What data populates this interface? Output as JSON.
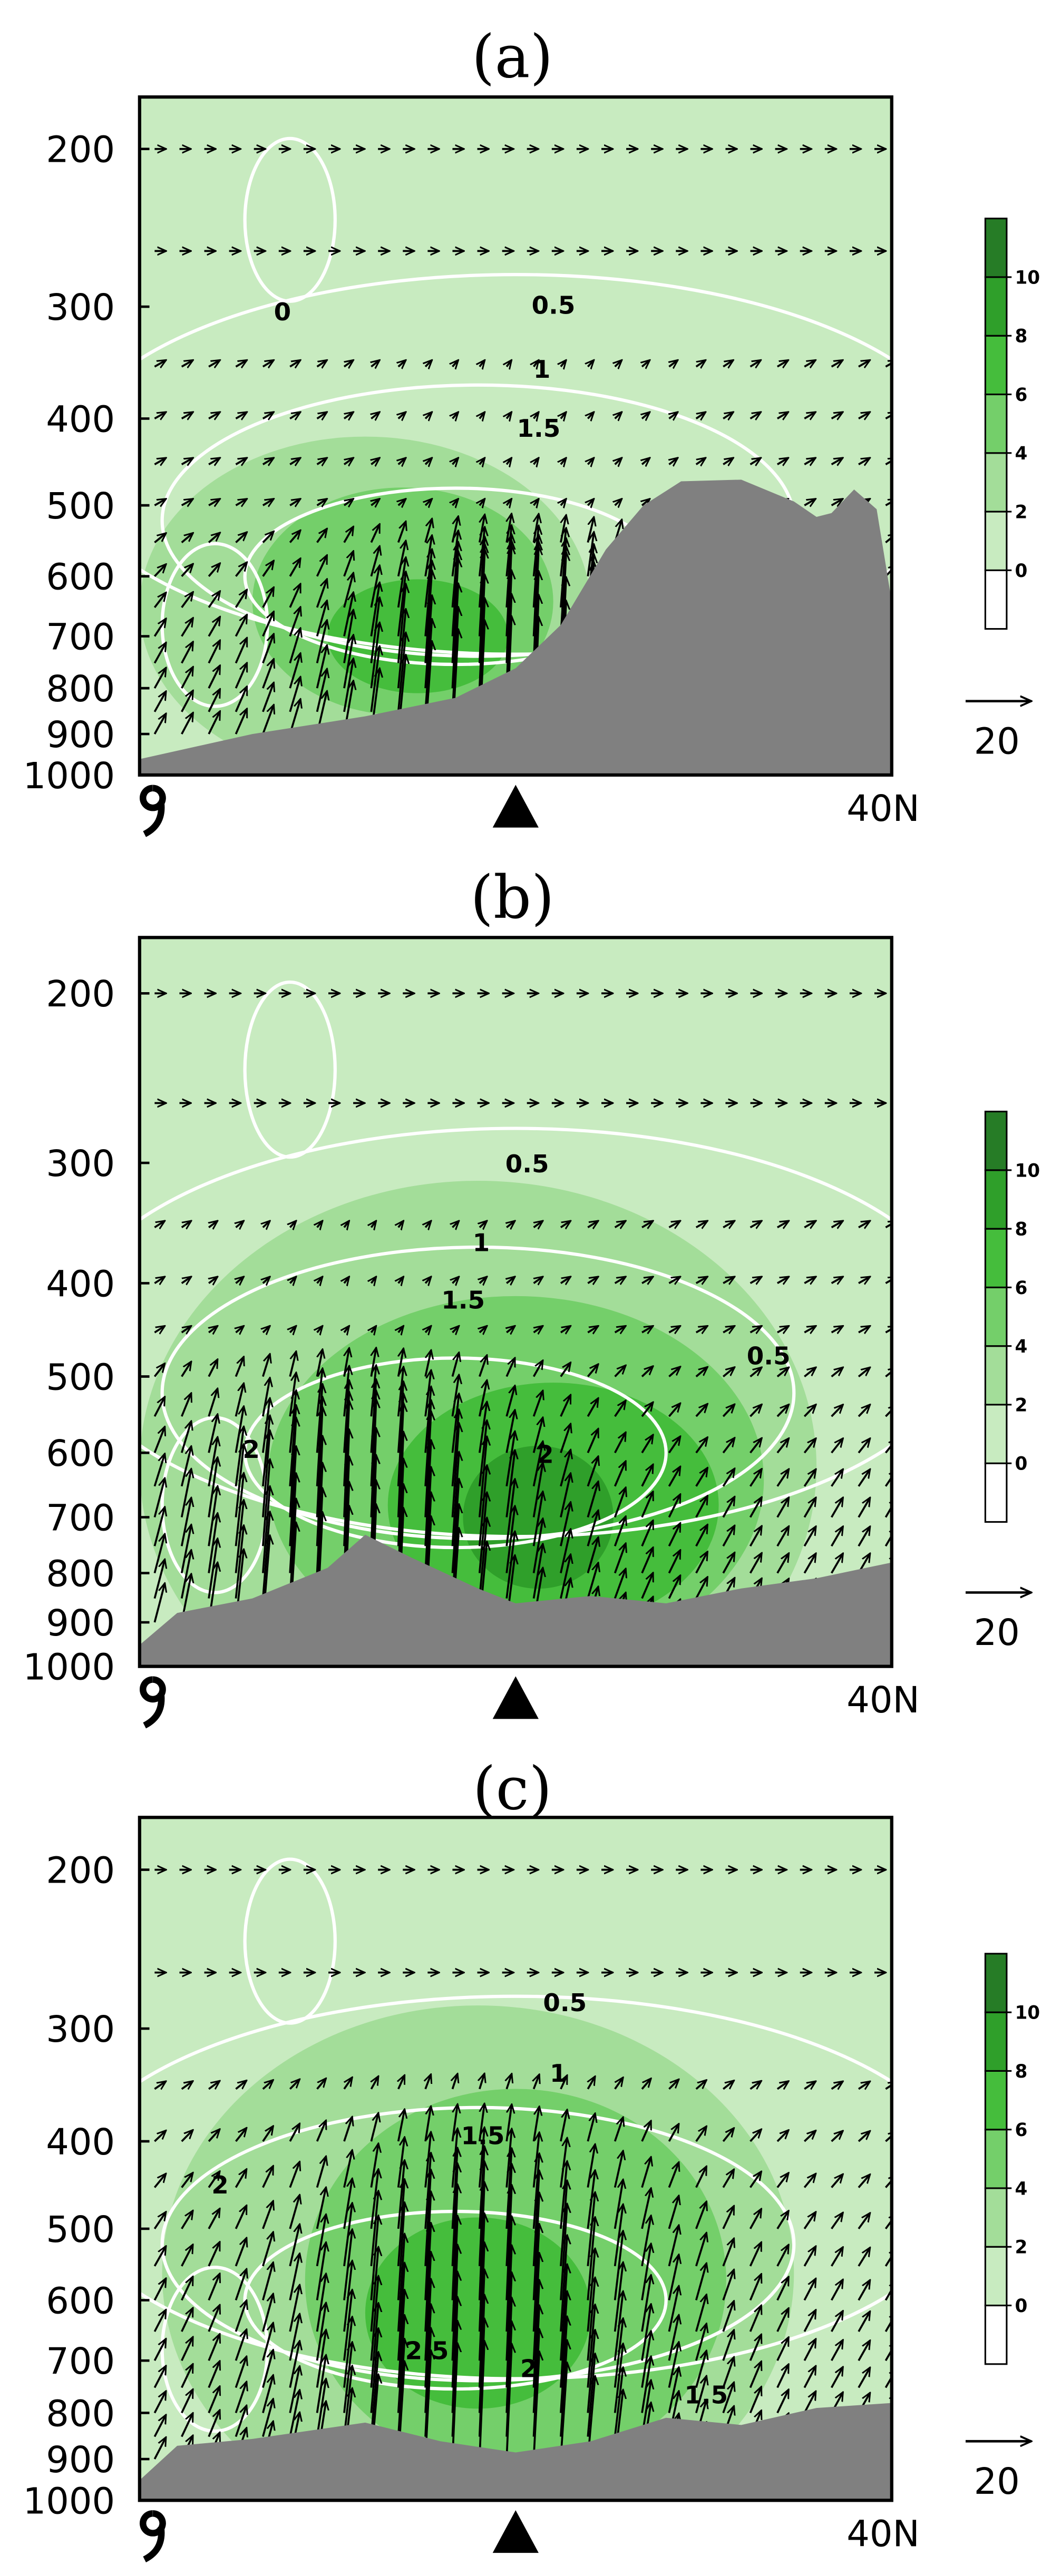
{
  "chart_data": [
    {
      "type": "contour",
      "title": "(a)",
      "ylim": [
        1000,
        175
      ],
      "log_y": true,
      "yticks": [
        200,
        300,
        400,
        500,
        600,
        700,
        800,
        900,
        1000
      ],
      "x_label": "40N",
      "contour_labels": [
        0,
        0.5,
        1,
        1.5
      ],
      "colorbar": {
        "ticks": [
          0,
          2,
          4,
          6,
          8,
          10
        ],
        "colors": [
          "#ffffff",
          "#c8ebc0",
          "#a3dd99",
          "#74cf6a",
          "#45bd3c",
          "#2f9f2a",
          "#267c26"
        ]
      },
      "vector_reference": 20
    },
    {
      "type": "contour",
      "title": "(b)",
      "ylim": [
        1000,
        175
      ],
      "log_y": true,
      "yticks": [
        200,
        300,
        400,
        500,
        600,
        700,
        800,
        900,
        1000
      ],
      "x_label": "40N",
      "contour_labels": [
        0.5,
        1,
        1.5,
        0.5,
        2,
        2
      ],
      "colorbar": {
        "ticks": [
          0,
          2,
          4,
          6,
          8,
          10
        ],
        "colors": [
          "#ffffff",
          "#c8ebc0",
          "#a3dd99",
          "#74cf6a",
          "#45bd3c",
          "#2f9f2a",
          "#267c26"
        ]
      },
      "vector_reference": 20
    },
    {
      "type": "contour",
      "title": "(c)",
      "ylim": [
        1000,
        175
      ],
      "log_y": true,
      "yticks": [
        200,
        300,
        400,
        500,
        600,
        700,
        800,
        900,
        1000
      ],
      "x_label": "40N",
      "contour_labels": [
        0.5,
        1,
        1.5,
        2,
        2.5,
        2,
        1.5
      ],
      "colorbar": {
        "ticks": [
          0,
          2,
          4,
          6,
          8,
          10
        ],
        "colors": [
          "#ffffff",
          "#c8ebc0",
          "#a3dd99",
          "#74cf6a",
          "#45bd3c",
          "#2f9f2a",
          "#267c26"
        ]
      },
      "vector_reference": 20
    }
  ]
}
